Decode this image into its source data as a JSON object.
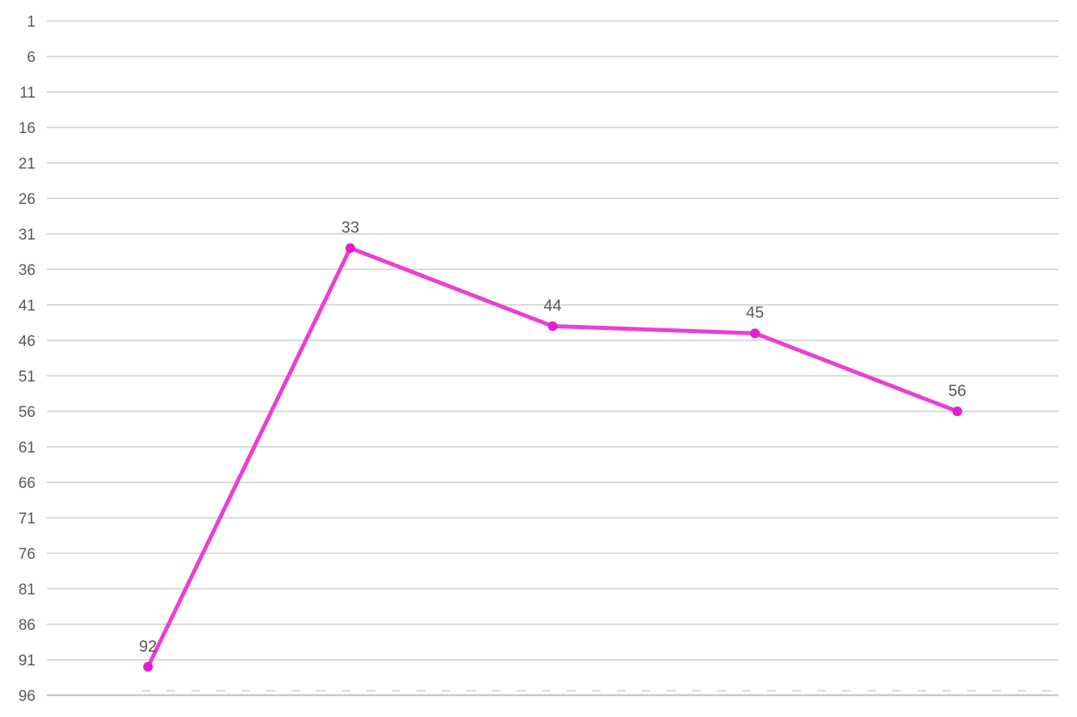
{
  "chart_data": {
    "type": "line",
    "title": "",
    "xlabel": "",
    "ylabel": "",
    "categories": [
      "",
      "",
      "",
      "",
      ""
    ],
    "values": [
      92,
      33,
      44,
      45,
      56
    ],
    "data_labels": [
      "92",
      "33",
      "44",
      "45",
      "56"
    ],
    "y_ticks": [
      1,
      6,
      11,
      16,
      21,
      26,
      31,
      36,
      41,
      46,
      51,
      56,
      61,
      66,
      71,
      76,
      81,
      86,
      91,
      96
    ],
    "y_tick_labels": [
      "1",
      "6",
      "11",
      "16",
      "21",
      "26",
      "31",
      "36",
      "41",
      "46",
      "51",
      "56",
      "61",
      "66",
      "71",
      "76",
      "81",
      "86",
      "91",
      "96"
    ],
    "ylim": [
      1,
      96
    ],
    "y_axis_reversed": true,
    "grid": true,
    "legend": "none",
    "line_color": "#EA3FD5",
    "marker_color": "#E51DCF",
    "gridline_color": "#DADADA",
    "axis_line_color": "#C8C8C8",
    "axis_dash_color": "#E4E4E4",
    "label_color": "#595959"
  }
}
